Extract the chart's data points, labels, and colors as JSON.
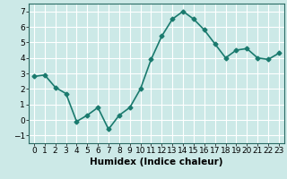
{
  "x": [
    0,
    1,
    2,
    3,
    4,
    5,
    6,
    7,
    8,
    9,
    10,
    11,
    12,
    13,
    14,
    15,
    16,
    17,
    18,
    19,
    20,
    21,
    22,
    23
  ],
  "y": [
    2.8,
    2.9,
    2.1,
    1.7,
    -0.1,
    0.3,
    0.8,
    -0.6,
    0.3,
    0.8,
    2.0,
    3.9,
    5.4,
    6.5,
    7.0,
    6.5,
    5.8,
    4.9,
    4.0,
    4.5,
    4.6,
    4.0,
    3.9,
    4.3
  ],
  "line_color": "#1a7a6e",
  "marker": "D",
  "marker_size": 2.5,
  "bg_color": "#cce9e7",
  "grid_color": "#ffffff",
  "xlabel": "Humidex (Indice chaleur)",
  "ylim": [
    -1.5,
    7.5
  ],
  "xlim": [
    -0.5,
    23.5
  ],
  "yticks": [
    -1,
    0,
    1,
    2,
    3,
    4,
    5,
    6,
    7
  ],
  "xticks": [
    0,
    1,
    2,
    3,
    4,
    5,
    6,
    7,
    8,
    9,
    10,
    11,
    12,
    13,
    14,
    15,
    16,
    17,
    18,
    19,
    20,
    21,
    22,
    23
  ],
  "xlabel_fontsize": 7.5,
  "tick_fontsize": 6.5,
  "line_width": 1.2
}
